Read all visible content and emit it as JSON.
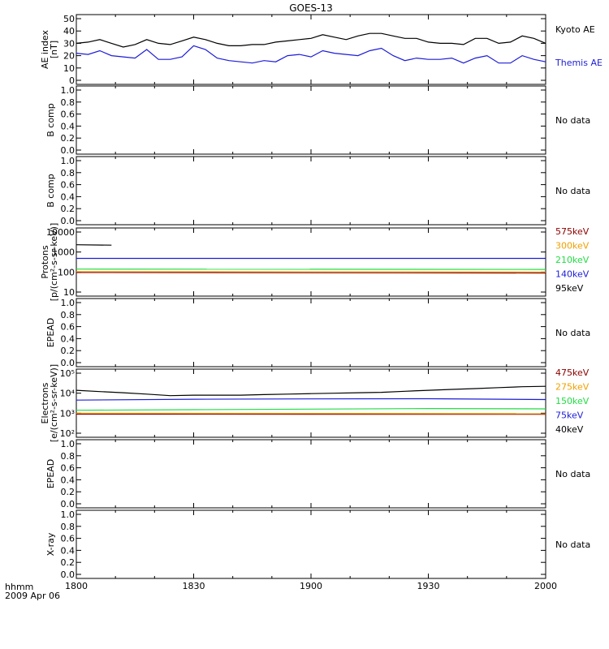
{
  "figure": {
    "title": "GOES-13",
    "x_axis_label": "hhmm",
    "date_label": "2009 Apr 06"
  },
  "colors": {
    "black": "#000000",
    "blue": "#1c1cd8",
    "green": "#22dd44",
    "orange": "#f0a000",
    "darkred": "#8b0000",
    "redline": "#cc2200"
  },
  "chart_data": [
    {
      "type": "line",
      "panel": "ae",
      "ylabel": [
        "AE index",
        "[nT]"
      ],
      "ylim": [
        0,
        50
      ],
      "yticks": [
        "0",
        "10",
        "20",
        "30",
        "40",
        "50"
      ],
      "ytick_values": [
        0,
        10,
        20,
        30,
        40,
        50
      ],
      "x_range": [
        1800,
        2000
      ],
      "x": [
        1800,
        1805,
        1810,
        1815,
        1820,
        1825,
        1830,
        1835,
        1840,
        1845,
        1850,
        1855,
        1860,
        1865,
        1870,
        1875,
        1880,
        1885,
        1890,
        1895,
        1900,
        1905,
        1910,
        1915,
        1920,
        1925,
        1930,
        1935,
        1940,
        1945,
        1950,
        1955,
        1960,
        1965,
        1970,
        1975,
        1980,
        1985,
        1990,
        1995,
        2000
      ],
      "series": [
        {
          "name": "Kyoto AE",
          "color": "#000000",
          "values": [
            30,
            31,
            33,
            30,
            27,
            29,
            33,
            30,
            29,
            32,
            35,
            33,
            30,
            28,
            28,
            29,
            29,
            31,
            32,
            33,
            34,
            37,
            35,
            33,
            36,
            38,
            38,
            36,
            34,
            34,
            31,
            30,
            30,
            29,
            34,
            34,
            30,
            31,
            36,
            34,
            30
          ]
        },
        {
          "name": "Themis AE",
          "color": "#1c1cd8",
          "values": [
            22,
            21,
            24,
            20,
            19,
            18,
            25,
            17,
            17,
            19,
            28,
            25,
            18,
            16,
            15,
            14,
            16,
            15,
            20,
            21,
            19,
            24,
            22,
            21,
            20,
            24,
            26,
            20,
            16,
            18,
            17,
            17,
            18,
            14,
            18,
            20,
            14,
            14,
            20,
            17,
            15
          ]
        }
      ]
    },
    {
      "type": "line",
      "panel": "bcomp1",
      "ylabel": [
        "B comp"
      ],
      "ylim": [
        0,
        1.0
      ],
      "yticks": [
        "0.0",
        "0.2",
        "0.4",
        "0.6",
        "0.8",
        "1.0"
      ],
      "ytick_values": [
        0,
        0.2,
        0.4,
        0.6,
        0.8,
        1.0
      ],
      "x_range": [
        1800,
        2000
      ],
      "note": "No data",
      "series": []
    },
    {
      "type": "line",
      "panel": "bcomp2",
      "ylabel": [
        "B comp"
      ],
      "ylim": [
        0,
        1.0
      ],
      "yticks": [
        "0.0",
        "0.2",
        "0.4",
        "0.6",
        "0.8",
        "1.0"
      ],
      "ytick_values": [
        0,
        0.2,
        0.4,
        0.6,
        0.8,
        1.0
      ],
      "x_range": [
        1800,
        2000
      ],
      "note": "No data",
      "series": []
    },
    {
      "type": "line",
      "panel": "protons",
      "ylabel": [
        "Protons",
        "[p/(cm²-s-sr-keV)]"
      ],
      "log": true,
      "ylim": [
        10,
        10000
      ],
      "yticks": [
        "10",
        "100",
        "1000",
        "10000"
      ],
      "ytick_values": [
        10,
        100,
        1000,
        10000
      ],
      "x_range": [
        1800,
        2000
      ],
      "series": [
        {
          "name": "575keV",
          "color": "#8b0000",
          "x": [
            1800,
            2000
          ],
          "values": [
            95,
            90
          ]
        },
        {
          "name": "300keV",
          "color": "#f0a000",
          "x": [
            1800,
            2000
          ],
          "values": [
            105,
            100
          ]
        },
        {
          "name": "210keV",
          "color": "#22dd44",
          "x": [
            1800,
            2000
          ],
          "values": [
            140,
            135
          ]
        },
        {
          "name": "140keV",
          "color": "#1c1cd8",
          "x": [
            1800,
            2000
          ],
          "values": [
            480,
            480
          ]
        },
        {
          "name": "95keV",
          "color": "#000000",
          "x": [
            1800,
            1815
          ],
          "values": [
            2300,
            2200
          ]
        }
      ]
    },
    {
      "type": "line",
      "panel": "epead1",
      "ylabel": [
        "EPEAD"
      ],
      "ylim": [
        0,
        1.0
      ],
      "yticks": [
        "0.0",
        "0.2",
        "0.4",
        "0.6",
        "0.8",
        "1.0"
      ],
      "ytick_values": [
        0,
        0.2,
        0.4,
        0.6,
        0.8,
        1.0
      ],
      "x_range": [
        1800,
        2000
      ],
      "note": "No data",
      "series": []
    },
    {
      "type": "line",
      "panel": "electrons",
      "ylabel": [
        "Electrons",
        "[e/(cm²-s-sr-keV)]"
      ],
      "log": true,
      "ylim": [
        100,
        100000
      ],
      "yticks": [
        "10²",
        "10³",
        "10⁴",
        "10⁵"
      ],
      "ytick_values": [
        100,
        1000,
        10000,
        100000
      ],
      "x_range": [
        1800,
        2000
      ],
      "series": [
        {
          "name": "475keV",
          "color": "#8b0000",
          "x": [
            1800,
            2000
          ],
          "values": [
            900,
            880
          ]
        },
        {
          "name": "275keV",
          "color": "#f0a000",
          "x": [
            1800,
            2000
          ],
          "values": [
            1000,
            950
          ]
        },
        {
          "name": "150keV",
          "color": "#22dd44",
          "x": [
            1800,
            1850,
            1900,
            1950,
            2000
          ],
          "values": [
            1400,
            1500,
            1600,
            1700,
            1650
          ]
        },
        {
          "name": "75keV",
          "color": "#1c1cd8",
          "x": [
            1800,
            1850,
            1900,
            1950,
            2000
          ],
          "values": [
            4500,
            5000,
            5200,
            5300,
            4800
          ]
        },
        {
          "name": "40keV",
          "color": "#000000",
          "x": [
            1800,
            1810,
            1820,
            1830,
            1840,
            1850,
            1860,
            1870,
            1880,
            1890,
            1900,
            1910,
            1920,
            1930,
            1940,
            1950,
            1960,
            1970,
            1980,
            1990,
            2000
          ],
          "values": [
            14000,
            12000,
            10500,
            9000,
            7500,
            8000,
            8000,
            8000,
            8500,
            9000,
            9500,
            10000,
            10500,
            11000,
            12500,
            14000,
            15500,
            17000,
            19000,
            21000,
            22000
          ]
        }
      ]
    },
    {
      "type": "line",
      "panel": "epead2",
      "ylabel": [
        "EPEAD"
      ],
      "ylim": [
        0,
        1.0
      ],
      "yticks": [
        "0.0",
        "0.2",
        "0.4",
        "0.6",
        "0.8",
        "1.0"
      ],
      "ytick_values": [
        0,
        0.2,
        0.4,
        0.6,
        0.8,
        1.0
      ],
      "x_range": [
        1800,
        2000
      ],
      "note": "No data",
      "series": []
    },
    {
      "type": "line",
      "panel": "xray",
      "ylabel": [
        "X-ray"
      ],
      "ylim": [
        0,
        1.0
      ],
      "yticks": [
        "0.0",
        "0.2",
        "0.4",
        "0.6",
        "0.8",
        "1.0"
      ],
      "ytick_values": [
        0,
        0.2,
        0.4,
        0.6,
        0.8,
        1.0
      ],
      "x_range": [
        1800,
        2000
      ],
      "xticks": [
        "1800",
        "1830",
        "1900",
        "1930",
        "2000"
      ],
      "xtick_values": [
        1800,
        1830,
        1900,
        1930,
        2000
      ],
      "note": "No data",
      "series": []
    }
  ]
}
